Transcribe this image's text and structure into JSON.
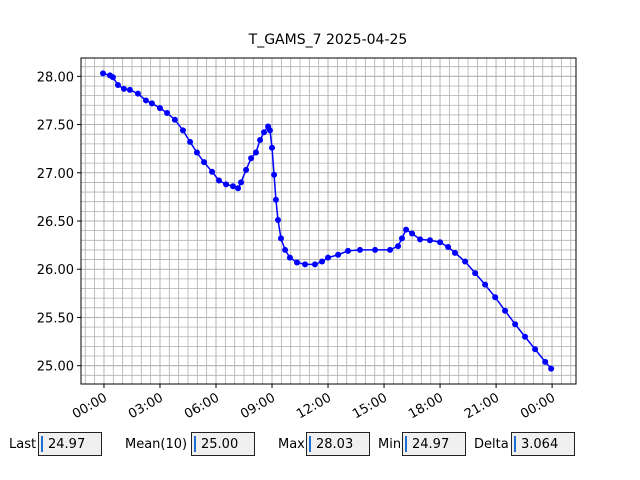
{
  "chart_data": {
    "type": "line",
    "title": "T_GAMS_7 2025-04-25",
    "x": [
      -0.05,
      0.32,
      0.48,
      0.75,
      1.07,
      1.39,
      1.82,
      2.25,
      2.57,
      3.0,
      3.38,
      3.8,
      4.23,
      4.61,
      4.98,
      5.36,
      5.79,
      6.16,
      6.54,
      6.91,
      7.18,
      7.34,
      7.61,
      7.88,
      8.14,
      8.36,
      8.57,
      8.79,
      8.89,
      9.0,
      9.11,
      9.21,
      9.32,
      9.48,
      9.7,
      9.96,
      10.34,
      10.77,
      11.3,
      11.68,
      12.0,
      12.54,
      13.07,
      13.71,
      14.52,
      15.32,
      15.75,
      15.96,
      16.18,
      16.5,
      16.93,
      17.46,
      18.0,
      18.43,
      18.8,
      19.34,
      19.88,
      20.41,
      20.95,
      21.48,
      22.02,
      22.55,
      23.09,
      23.63,
      23.95
    ],
    "series": [
      {
        "color": "#0000ff",
        "values": [
          28.03,
          28.01,
          27.99,
          27.91,
          27.87,
          27.86,
          27.82,
          27.75,
          27.72,
          27.67,
          27.62,
          27.55,
          27.44,
          27.32,
          27.21,
          27.11,
          27.01,
          26.92,
          26.88,
          26.86,
          26.84,
          26.9,
          27.03,
          27.15,
          27.21,
          27.34,
          27.42,
          27.48,
          27.44,
          27.26,
          26.98,
          26.72,
          26.51,
          26.32,
          26.2,
          26.12,
          26.07,
          26.05,
          26.05,
          26.08,
          26.12,
          26.15,
          26.19,
          26.2,
          26.2,
          26.2,
          26.24,
          26.32,
          26.41,
          26.37,
          26.31,
          26.3,
          26.28,
          26.23,
          26.17,
          26.08,
          25.96,
          25.84,
          25.71,
          25.57,
          25.43,
          25.3,
          25.17,
          25.04,
          24.97
        ]
      }
    ],
    "xlim": [
      -1.23,
      25.28
    ],
    "ylim": [
      24.81,
      28.19
    ],
    "xticks": [
      {
        "value": 0,
        "label": "00:00"
      },
      {
        "value": 3,
        "label": "03:00"
      },
      {
        "value": 6,
        "label": "06:00"
      },
      {
        "value": 9,
        "label": "09:00"
      },
      {
        "value": 12,
        "label": "12:00"
      },
      {
        "value": 15,
        "label": "15:00"
      },
      {
        "value": 18,
        "label": "18:00"
      },
      {
        "value": 21,
        "label": "21:00"
      },
      {
        "value": 24,
        "label": "00:00"
      }
    ],
    "yticks": [
      {
        "value": 25,
        "label": "25.00"
      },
      {
        "value": 25.5,
        "label": "25.50"
      },
      {
        "value": 26,
        "label": "26.00"
      },
      {
        "value": 26.5,
        "label": "26.50"
      },
      {
        "value": 27,
        "label": "27.00"
      },
      {
        "value": 27.5,
        "label": "27.50"
      },
      {
        "value": 28,
        "label": "28.00"
      }
    ],
    "grid": true,
    "minor_grid": {
      "x": 0.5,
      "y": 0.1
    }
  },
  "status_bar": {
    "fields": [
      {
        "label": "Last",
        "value": "24.97"
      },
      {
        "label": "Mean(10)",
        "value": "25.00"
      },
      {
        "label": "Max",
        "value": "28.03"
      },
      {
        "label": "Min",
        "value": "24.97"
      },
      {
        "label": "Delta",
        "value": "3.064"
      }
    ]
  }
}
